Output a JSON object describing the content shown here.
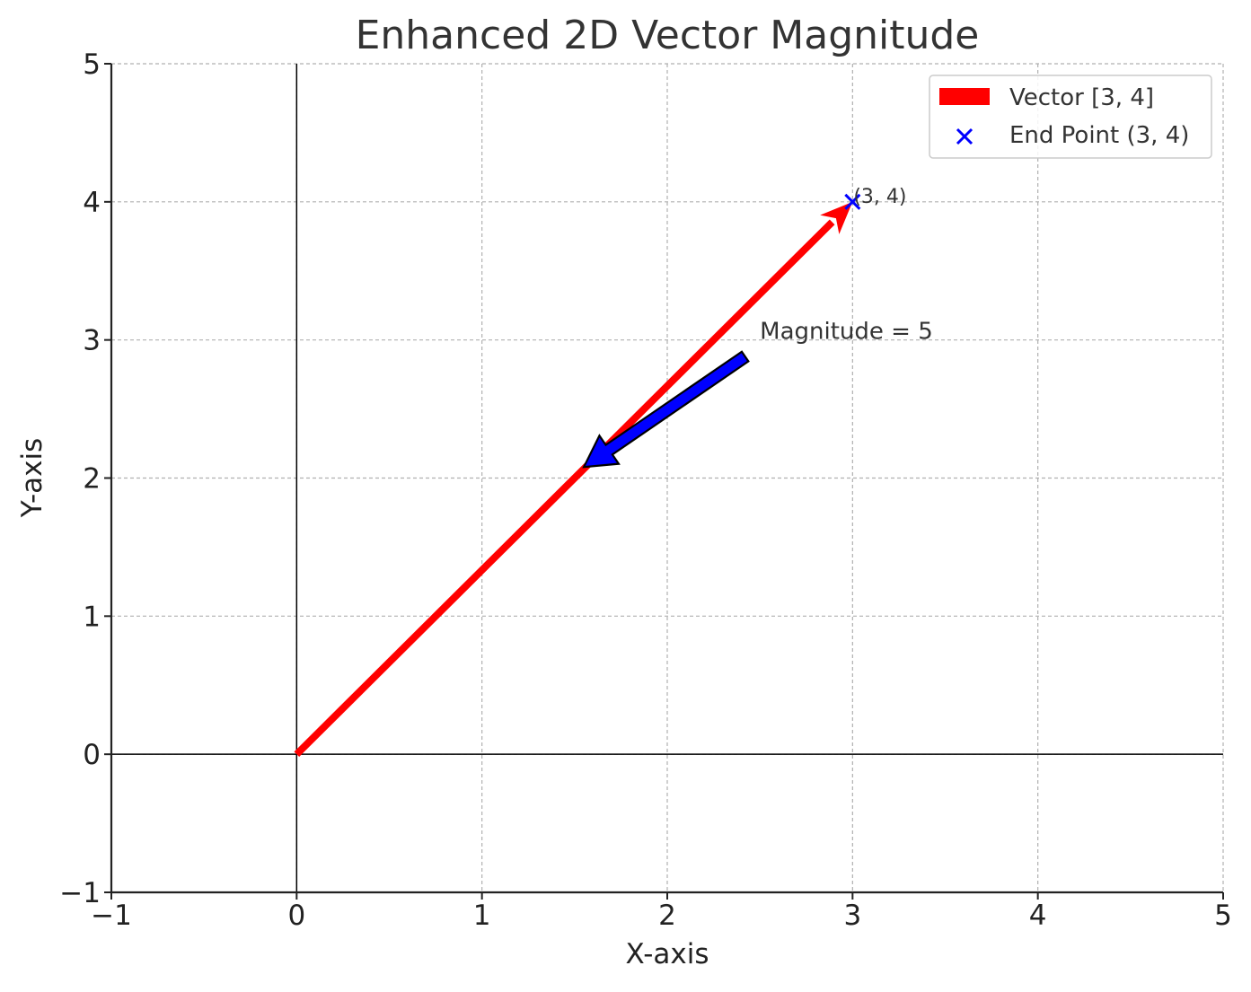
{
  "chart_data": {
    "type": "line",
    "title": "Enhanced 2D Vector Magnitude",
    "xlabel": "X-axis",
    "ylabel": "Y-axis",
    "xlim": [
      -1,
      5
    ],
    "ylim": [
      -1,
      5
    ],
    "xticks": [
      -1,
      0,
      1,
      2,
      3,
      4,
      5
    ],
    "yticks": [
      -1,
      0,
      1,
      2,
      3,
      4,
      5
    ],
    "xtick_labels": [
      "−1",
      "0",
      "1",
      "2",
      "3",
      "4",
      "5"
    ],
    "ytick_labels": [
      "−1",
      "0",
      "1",
      "2",
      "3",
      "4",
      "5"
    ],
    "grid": true,
    "legend_position": "top-right",
    "series": [
      {
        "name": "Vector [3, 4]",
        "kind": "vector",
        "color": "#ff0000",
        "from": [
          0,
          0
        ],
        "to": [
          3,
          4
        ]
      },
      {
        "name": "End Point (3, 4)",
        "kind": "scatter",
        "marker": "x",
        "color": "#0000ff",
        "points": [
          [
            3,
            4
          ]
        ]
      }
    ],
    "annotations": [
      {
        "id": "endpoint-label",
        "text": "(3, 4)",
        "at": [
          3,
          4
        ]
      },
      {
        "id": "magnitude",
        "text": "Magnitude = 5",
        "text_at": [
          2.5,
          3
        ],
        "arrow_from": [
          2.42,
          2.88
        ],
        "arrow_to": [
          1.55,
          2.08
        ],
        "arrow_color": "#0000ff"
      }
    ]
  }
}
